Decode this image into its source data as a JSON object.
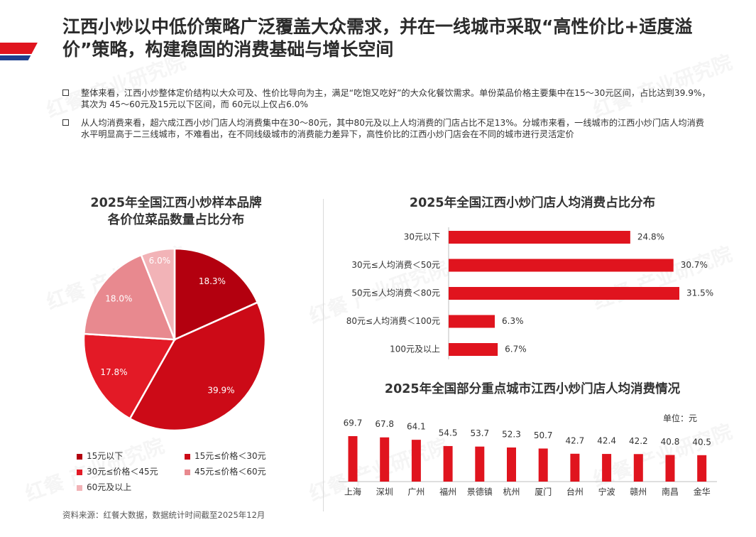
{
  "header": {
    "title": "江西小炒以中低价策略广泛覆盖大众需求，并在一线城市采取“高性价比+适度溢价”策略，构建稳固的消费基础与增长空间"
  },
  "bullets": [
    "整体来看，江西小炒整体定价结构以大众可及、性价比导向为主，满足“吃饱又吃好”的大众化餐饮需求。单份菜品价格主要集中在15～30元区间，占比达到39.9%，其次为 45～60元及15元以下区间，而 60元以上仅占6.0%",
    "从人均消费来看，超六成江西小炒门店人均消费集中在30～80元，其中80元及以上人均消费的门店占比不足13%。分城市来看，一线城市的江西小炒门店人均消费水平明显高于二三线城市，不难看出，在不同线级城市的消费能力差异下，高性价比的江西小炒门店会在不同的城市进行灵活定价"
  ],
  "watermark": "红餐 产业研究院",
  "source": "资料来源：红餐大数据，数据统计时间截至2025年12月",
  "chart_data": [
    {
      "type": "pie",
      "title": "2025年全国江西小炒样本品牌各价位菜品数量占比分布",
      "title_lines": [
        "2025年全国江西小炒样本品牌",
        "各价位菜品数量占比分布"
      ],
      "categories": [
        "15元以下",
        "15元≤价格＜30元",
        "30元≤价格＜45元",
        "45元≤价格＜60元",
        "60元及以上"
      ],
      "values": [
        18.3,
        39.9,
        17.8,
        18.0,
        6.0
      ],
      "labels": [
        "18.3%",
        "39.9%",
        "17.8%",
        "18.0%",
        "6.0%"
      ],
      "colors": [
        "#b3000f",
        "#cc0a17",
        "#e31a26",
        "#e8898f",
        "#f2b3b7"
      ],
      "legend_position": "bottom-left"
    },
    {
      "type": "bar",
      "orientation": "horizontal",
      "title": "2025年全国江西小炒门店人均消费占比分布",
      "categories": [
        "30元以下",
        "30元≤人均消费＜50元",
        "50元≤人均消费＜80元",
        "80元≤人均消费＜100元",
        "100元及以上"
      ],
      "values": [
        24.8,
        30.7,
        31.5,
        6.3,
        6.7
      ],
      "labels": [
        "24.8%",
        "30.7%",
        "31.5%",
        "6.3%",
        "6.7%"
      ],
      "color": "#e0141e",
      "xlim": [
        0,
        31.5
      ]
    },
    {
      "type": "bar",
      "title": "2025年全国部分重点城市江西小炒门店人均消费情况",
      "unit": "单位：元",
      "categories": [
        "上海",
        "深圳",
        "广州",
        "福州",
        "景德镇",
        "杭州",
        "厦门",
        "台州",
        "宁波",
        "赣州",
        "南昌",
        "金华"
      ],
      "values": [
        69.7,
        67.8,
        64.1,
        54.5,
        53.7,
        52.3,
        50.7,
        42.7,
        42.4,
        42.2,
        40.8,
        40.5
      ],
      "color": "#e0141e",
      "ylim": [
        0,
        69.7
      ]
    }
  ]
}
